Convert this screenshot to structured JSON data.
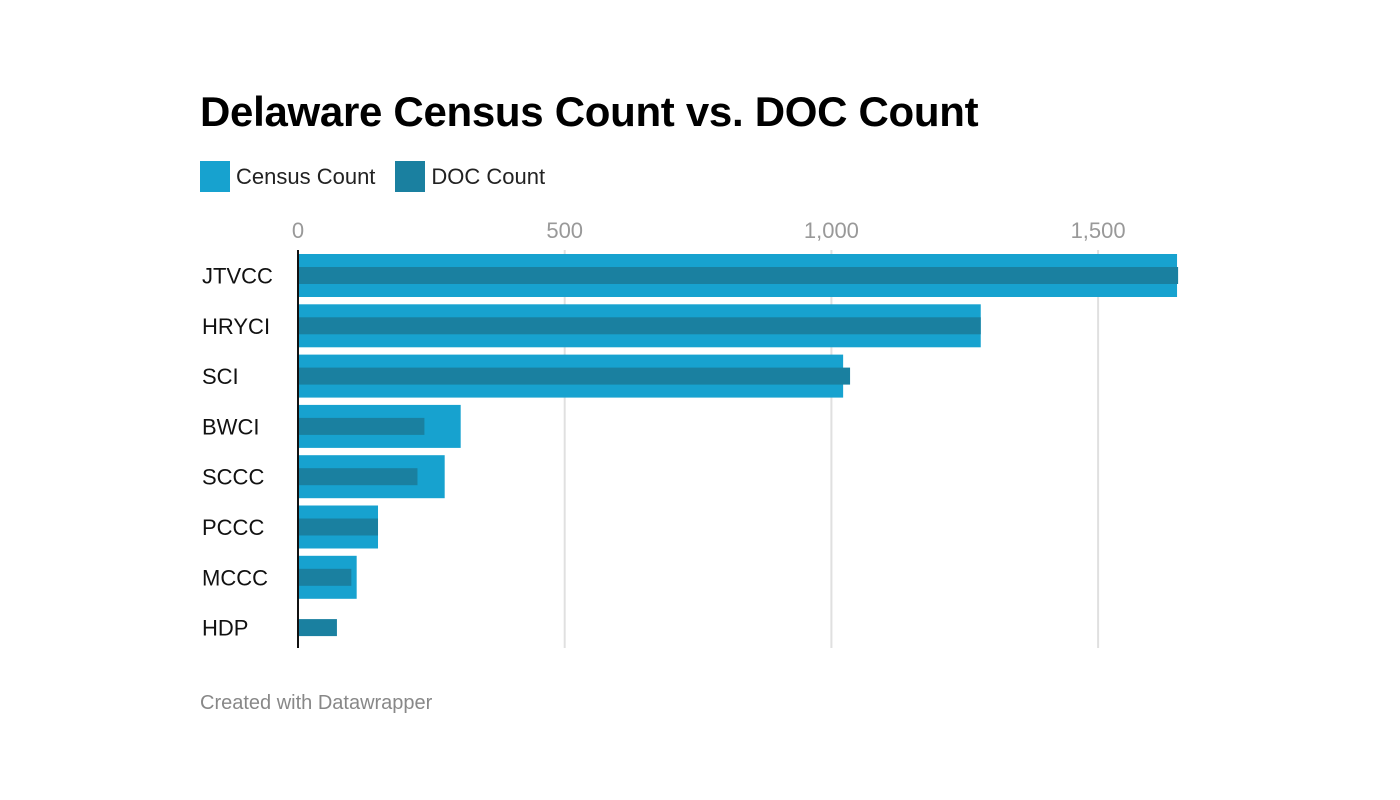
{
  "chart_data": {
    "type": "bar",
    "orientation": "horizontal",
    "title": "Delaware Census Count vs. DOC Count",
    "xlabel": "",
    "ylabel": "",
    "categories": [
      "JTVCC",
      "HRYCI",
      "SCI",
      "BWCI",
      "SCCC",
      "PCCC",
      "MCCC",
      "HDP"
    ],
    "series": [
      {
        "name": "Census Count",
        "color": "#17a2cf",
        "values": [
          1648,
          1280,
          1022,
          305,
          275,
          150,
          110,
          0
        ]
      },
      {
        "name": "DOC Count",
        "color": "#1a80a0",
        "values": [
          1650,
          1280,
          1035,
          237,
          224,
          150,
          100,
          73
        ]
      }
    ],
    "xlim": [
      0,
      1650
    ],
    "x_ticks": [
      0,
      500,
      1000,
      1500
    ],
    "x_tick_labels": [
      "0",
      "500",
      "1,000",
      "1,500"
    ],
    "grid": true,
    "legend_position": "top-left"
  },
  "footer": {
    "note": "Created with Datawrapper"
  },
  "colors": {
    "grid": "#e0e0e0",
    "axis": "#111111",
    "tick_label": "#999999"
  }
}
